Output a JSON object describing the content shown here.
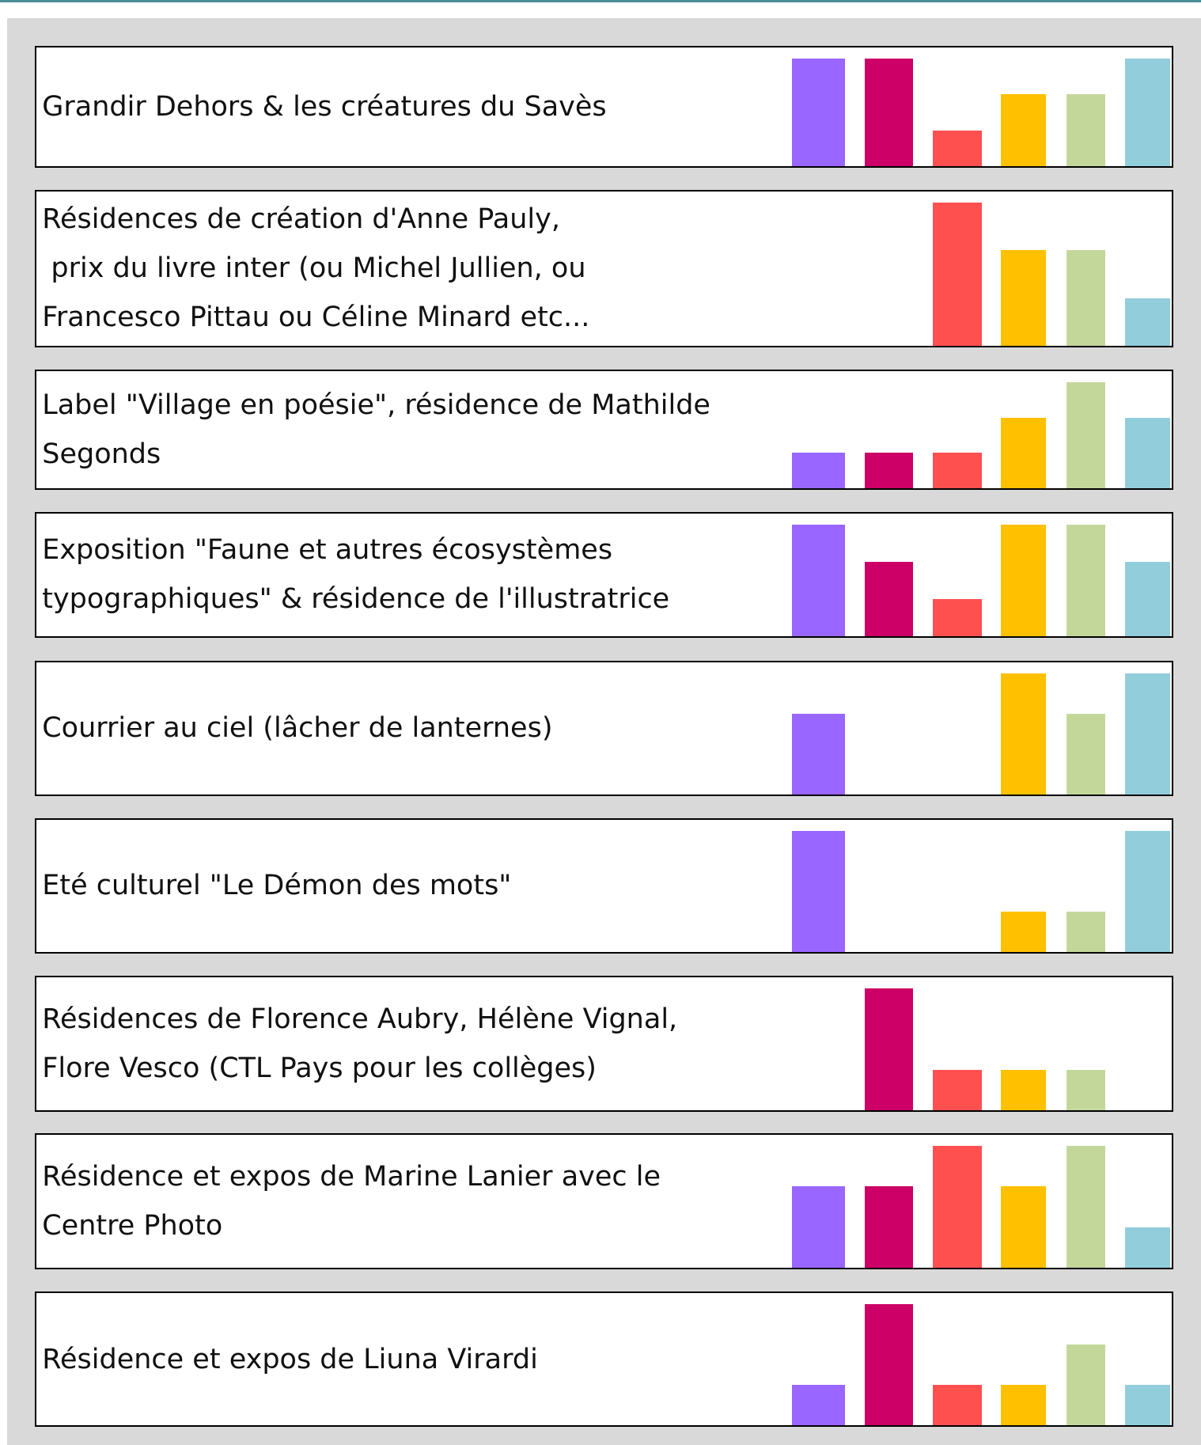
{
  "ylim": [
    0,
    3
  ],
  "colors": [
    "#9966ff",
    "#cc0066",
    "#ff5050",
    "#ffc000",
    "#c4d79b",
    "#92cddc"
  ],
  "rows": [
    {
      "lines": [
        "Grandir Dehors & les créatures du Savès"
      ],
      "values": [
        3,
        3,
        1,
        2,
        2,
        3
      ]
    },
    {
      "lines": [
        "Résidences de création d'Anne Pauly,",
        " prix du livre inter (ou Michel Jullien, ou",
        "Francesco Pittau ou Céline Minard etc..."
      ],
      "values": [
        0,
        0,
        3,
        2,
        2,
        1
      ]
    },
    {
      "lines": [
        "Label \"Village en poésie\", résidence de Mathilde",
        "Segonds"
      ],
      "values": [
        1,
        1,
        1,
        2,
        3,
        2
      ]
    },
    {
      "lines": [
        "Exposition \"Faune et autres écosystèmes",
        "typographiques\" & résidence de l'illustratrice"
      ],
      "values": [
        3,
        2,
        1,
        3,
        3,
        2
      ]
    },
    {
      "lines": [
        "Courrier au ciel (lâcher de lanternes)"
      ],
      "values": [
        2,
        0,
        0,
        3,
        2,
        3
      ]
    },
    {
      "lines": [
        "Eté culturel \"Le Démon des mots\""
      ],
      "values": [
        3,
        0,
        0,
        1,
        1,
        3
      ]
    },
    {
      "lines": [
        "Résidences de Florence Aubry, Hélène Vignal,",
        "Flore Vesco (CTL Pays pour les collèges)"
      ],
      "values": [
        0,
        3,
        1,
        1,
        1,
        0
      ]
    },
    {
      "lines": [
        "Résidence et expos de Marine Lanier avec le",
        "Centre Photo"
      ],
      "values": [
        2,
        2,
        3,
        2,
        3,
        1
      ]
    },
    {
      "lines": [
        "Résidence et expos de Liuna Virardi"
      ],
      "values": [
        1,
        3,
        1,
        1,
        2,
        1
      ]
    }
  ]
}
